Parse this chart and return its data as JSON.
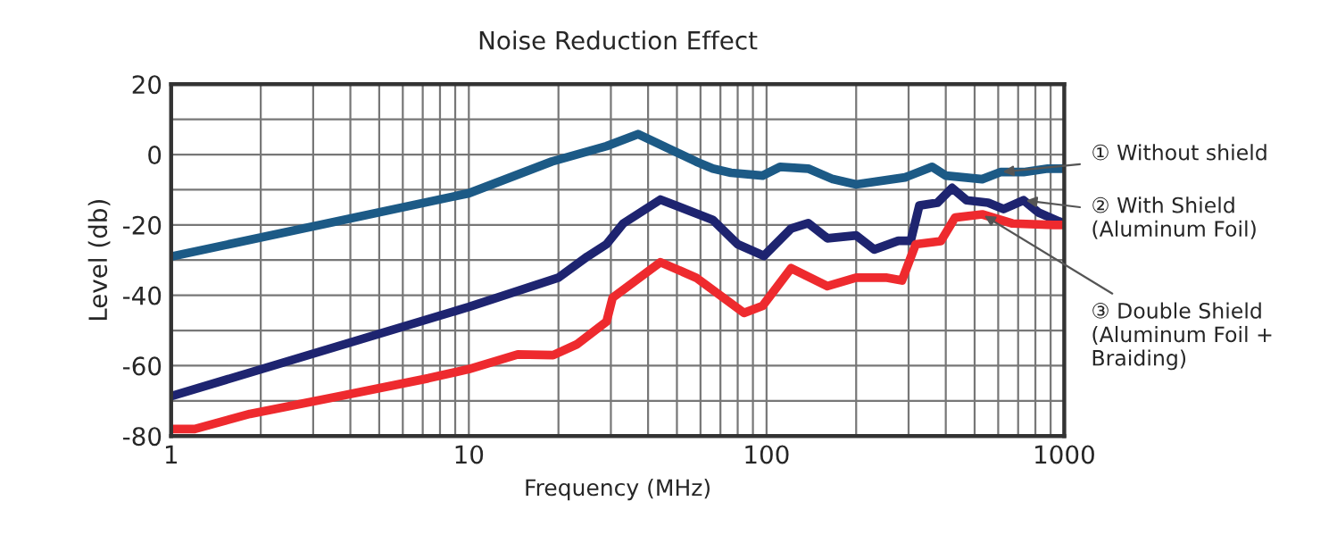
{
  "chart_data": {
    "type": "line",
    "title": "Noise Reduction Effect",
    "xlabel": "Frequency (MHz)",
    "ylabel": "Level (db)",
    "log": "x",
    "xlim": [
      1,
      1000
    ],
    "xticks": [
      1,
      10,
      100,
      1000
    ],
    "ylim": [
      -80,
      20
    ],
    "yticks": [
      -80,
      -60,
      -40,
      -20,
      0,
      20
    ],
    "grid": true,
    "legend": false,
    "marker": "none",
    "line_style": "solid",
    "series": [
      {
        "name": "① Without shield",
        "color": "#1c5a86",
        "x": [
          1,
          10,
          19,
          29,
          37,
          58,
          66,
          76,
          97,
          111,
          138,
          167,
          200,
          292,
          360,
          400,
          530,
          610,
          730,
          880,
          1000
        ],
        "values": [
          -29,
          -11,
          -2,
          2.4,
          5.8,
          -2,
          -4,
          -5.2,
          -6,
          -3.5,
          -4,
          -7,
          -8.5,
          -6.5,
          -3.5,
          -6,
          -7,
          -5,
          -5,
          -4,
          -4
        ]
      },
      {
        "name": "② With Shield\n(Aluminum Foil)",
        "color": "#1e2470",
        "x": [
          1,
          10,
          20,
          25,
          29,
          33,
          44,
          66,
          80,
          98,
          121,
          138,
          160,
          200,
          230,
          277,
          305,
          326,
          375,
          420,
          470,
          555,
          625,
          730,
          820,
          960,
          1000
        ],
        "values": [
          -68.7,
          -43.3,
          -35,
          -29,
          -25.5,
          -19.6,
          -12.8,
          -18.6,
          -25.5,
          -28.8,
          -21,
          -19.5,
          -23.8,
          -23,
          -27,
          -24.5,
          -24.5,
          -14.5,
          -13.7,
          -9.5,
          -13,
          -13.7,
          -15.5,
          -13,
          -16.5,
          -19,
          -19.5
        ]
      },
      {
        "name": "③ Double Shield\n(Aluminum Foil +\nBraiding)",
        "color": "#ee2a2e",
        "x": [
          1,
          1.2,
          1.84,
          3.66,
          7.3,
          10,
          14.6,
          19.2,
          23,
          29,
          30.4,
          44,
          58,
          84,
          97,
          121,
          160,
          200,
          254,
          285,
          317,
          385,
          430,
          530,
          670,
          920,
          1000
        ],
        "values": [
          -78,
          -78,
          -73.7,
          -68.7,
          -63.6,
          -61,
          -56.8,
          -57,
          -54,
          -47.5,
          -40.7,
          -30.6,
          -35,
          -45,
          -43,
          -32.3,
          -37.4,
          -35,
          -35,
          -35.8,
          -25.5,
          -24.6,
          -17.9,
          -17,
          -19.6,
          -20,
          -20
        ]
      }
    ]
  }
}
